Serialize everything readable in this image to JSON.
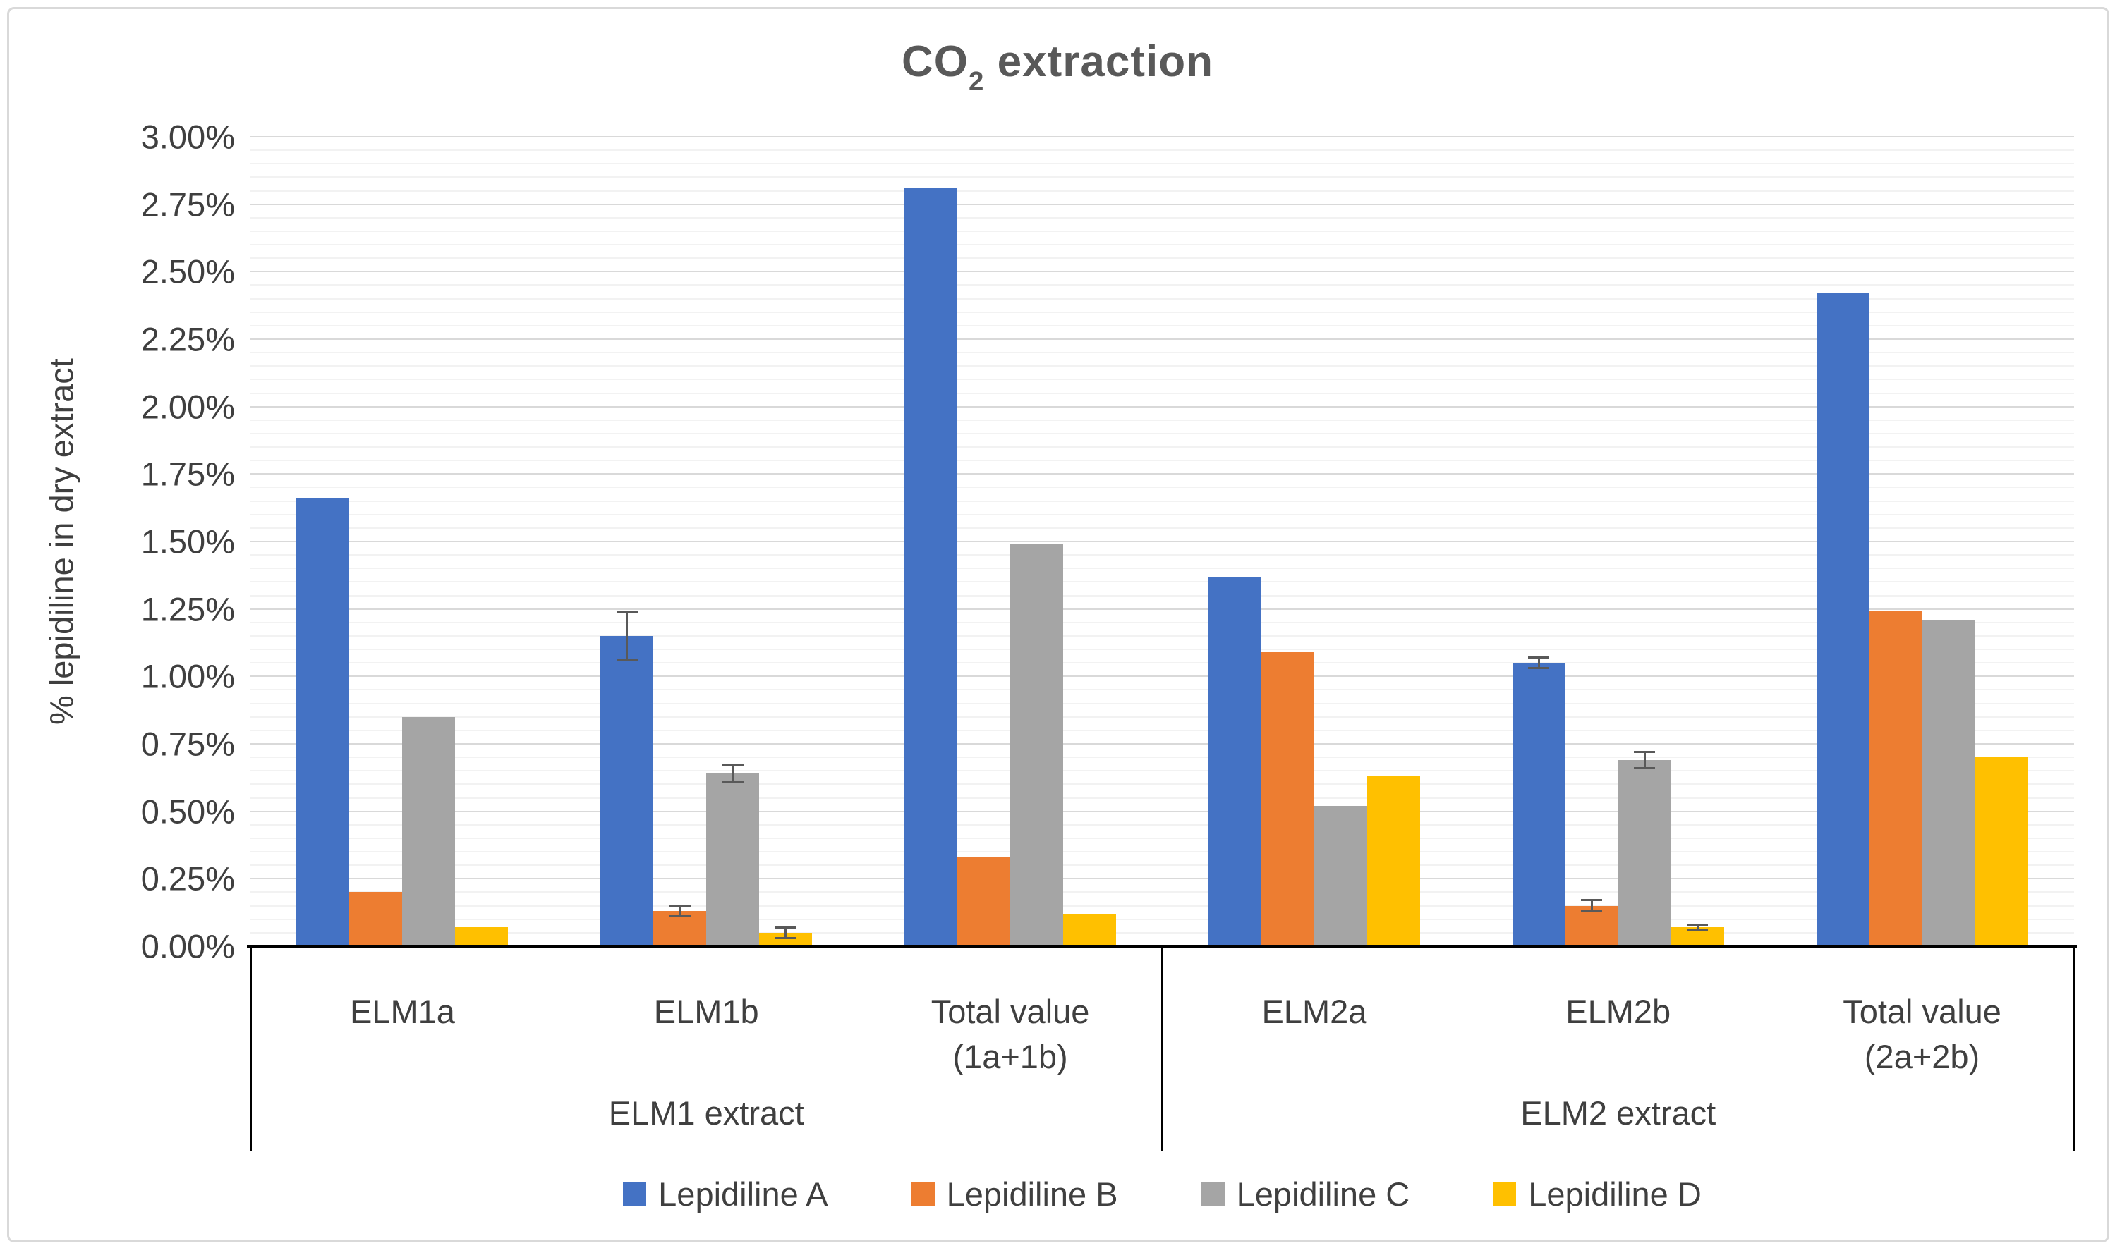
{
  "title": {
    "text_main": "CO",
    "text_subscript": "2",
    "text_rest": " extraction"
  },
  "y_axis": {
    "title": "% lepidiline in dry extract",
    "tick_labels": [
      "3.00%",
      "2.75%",
      "2.50%",
      "2.25%",
      "2.00%",
      "1.75%",
      "1.50%",
      "1.25%",
      "1.00%",
      "0.75%",
      "0.50%",
      "0.25%",
      "0.00%"
    ]
  },
  "x_axis": {
    "categories": [
      {
        "lines": [
          "ELM1a"
        ]
      },
      {
        "lines": [
          "ELM1b"
        ]
      },
      {
        "lines": [
          "Total value",
          "(1a+1b)"
        ]
      },
      {
        "lines": [
          "ELM2a"
        ]
      },
      {
        "lines": [
          "ELM2b"
        ]
      },
      {
        "lines": [
          "Total value",
          "(2a+2b)"
        ]
      }
    ],
    "group_labels": [
      "ELM1 extract",
      "ELM2 extract"
    ]
  },
  "colors": {
    "lepidiline_a": "#4472C4",
    "lepidiline_b": "#ED7D31",
    "lepidiline_c": "#A5A5A5",
    "lepidiline_d": "#FFC000",
    "error_bar": "#595959",
    "major_gridline": "#D9D9D9",
    "minor_gridline": "#F2F2F2",
    "axis_line": "#000000",
    "title_text": "#595959",
    "axis_text": "#3F3F3F"
  },
  "chart_data": {
    "type": "bar",
    "title": "CO2 extraction",
    "ylabel": "% lepidiline in dry extract",
    "y_unit": "%",
    "ylim": [
      0,
      3.0
    ],
    "gridlines": {
      "major_step": 0.25,
      "minor_step": 0.05,
      "visible": true
    },
    "legend_position": "bottom",
    "categories": [
      "ELM1a",
      "ELM1b",
      "Total value (1a+1b)",
      "ELM2a",
      "ELM2b",
      "Total value (2a+2b)"
    ],
    "category_groups": [
      {
        "label": "ELM1 extract",
        "categories": [
          "ELM1a",
          "ELM1b",
          "Total value (1a+1b)"
        ]
      },
      {
        "label": "ELM2 extract",
        "categories": [
          "ELM2a",
          "ELM2b",
          "Total value (2a+2b)"
        ]
      }
    ],
    "series": [
      {
        "name": "Lepidiline A",
        "color": "#4472C4",
        "values": [
          1.66,
          1.15,
          2.81,
          1.37,
          1.05,
          2.42
        ],
        "errors": [
          null,
          0.09,
          null,
          null,
          0.02,
          null
        ]
      },
      {
        "name": "Lepidiline B",
        "color": "#ED7D31",
        "values": [
          0.2,
          0.13,
          0.33,
          1.09,
          0.15,
          1.24
        ],
        "errors": [
          null,
          0.02,
          null,
          null,
          0.02,
          null
        ]
      },
      {
        "name": "Lepidiline C",
        "color": "#A5A5A5",
        "values": [
          0.85,
          0.64,
          1.49,
          0.52,
          0.69,
          1.21
        ],
        "errors": [
          null,
          0.03,
          null,
          null,
          0.03,
          null
        ]
      },
      {
        "name": "Lepidiline D",
        "color": "#FFC000",
        "values": [
          0.07,
          0.05,
          0.12,
          0.63,
          0.07,
          0.7
        ],
        "errors": [
          null,
          0.02,
          null,
          null,
          0.01,
          null
        ]
      }
    ]
  }
}
